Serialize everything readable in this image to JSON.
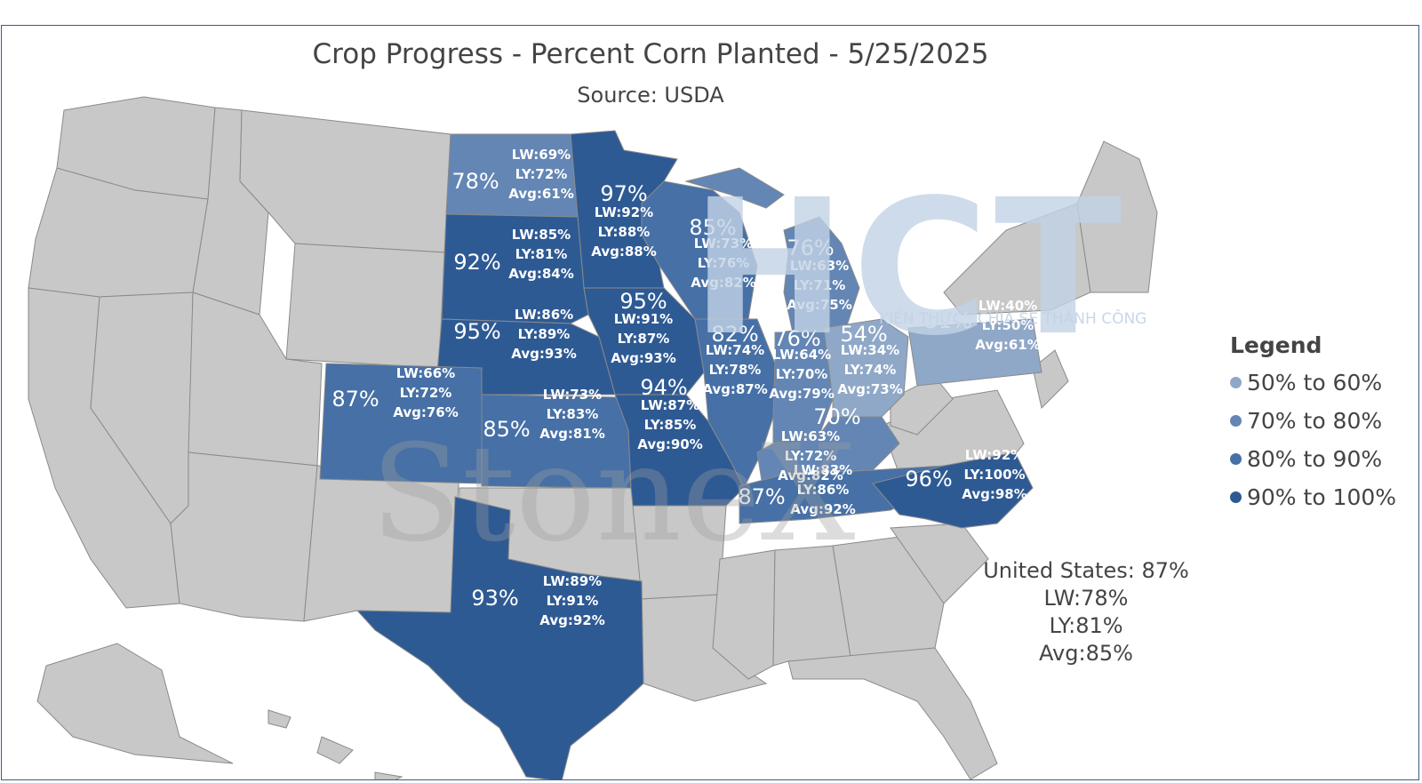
{
  "title": "Crop Progress - Percent Corn Planted - 5/25/2025",
  "subtitle": "Source: USDA",
  "legend": {
    "title": "Legend",
    "items": [
      {
        "label": "50% to 60%",
        "color": "#8fa8c8"
      },
      {
        "label": "70% to 80%",
        "color": "#6386b4"
      },
      {
        "label": "80% to 90%",
        "color": "#4670a6"
      },
      {
        "label": "90% to 100%",
        "color": "#2e5a94"
      }
    ]
  },
  "states": [
    {
      "id": "ND",
      "pct": "78%",
      "lw": "LW:69%",
      "ly": "LY:72%",
      "avg": "Avg:61%",
      "color": "#6386b4"
    },
    {
      "id": "MN",
      "pct": "97%",
      "lw": "LW:92%",
      "ly": "LY:88%",
      "avg": "Avg:88%",
      "color": "#2e5a94"
    },
    {
      "id": "WI",
      "pct": "85%",
      "lw": "LW:73%",
      "ly": "LY:76%",
      "avg": "Avg:82%",
      "color": "#4670a6"
    },
    {
      "id": "MI",
      "pct": "76%",
      "lw": "LW:63%",
      "ly": "LY:71%",
      "avg": "Avg:75%",
      "color": "#6386b4"
    },
    {
      "id": "SD",
      "pct": "92%",
      "lw": "LW:85%",
      "ly": "LY:81%",
      "avg": "Avg:84%",
      "color": "#2e5a94"
    },
    {
      "id": "IA",
      "pct": "95%",
      "lw": "LW:91%",
      "ly": "LY:87%",
      "avg": "Avg:93%",
      "color": "#2e5a94"
    },
    {
      "id": "NE",
      "pct": "95%",
      "lw": "LW:86%",
      "ly": "LY:89%",
      "avg": "Avg:93%",
      "color": "#2e5a94"
    },
    {
      "id": "CO",
      "pct": "87%",
      "lw": "LW:66%",
      "ly": "LY:72%",
      "avg": "Avg:76%",
      "color": "#4670a6"
    },
    {
      "id": "KS",
      "pct": "85%",
      "lw": "LW:73%",
      "ly": "LY:83%",
      "avg": "Avg:81%",
      "color": "#4670a6"
    },
    {
      "id": "MO",
      "pct": "94%",
      "lw": "LW:87%",
      "ly": "LY:85%",
      "avg": "Avg:90%",
      "color": "#2e5a94"
    },
    {
      "id": "IL",
      "pct": "82%",
      "lw": "LW:74%",
      "ly": "LY:78%",
      "avg": "Avg:87%",
      "color": "#4670a6"
    },
    {
      "id": "IN",
      "pct": "76%",
      "lw": "LW:64%",
      "ly": "LY:70%",
      "avg": "Avg:79%",
      "color": "#6386b4"
    },
    {
      "id": "OH",
      "pct": "54%",
      "lw": "LW:34%",
      "ly": "LY:74%",
      "avg": "Avg:73%",
      "color": "#8fa8c8"
    },
    {
      "id": "PA",
      "pct": "51%",
      "lw": "LW:40%",
      "ly": "LY:50%",
      "avg": "Avg:61%",
      "color": "#8fa8c8"
    },
    {
      "id": "KY",
      "pct": "70%",
      "lw": "LW:63%",
      "ly": "LY:72%",
      "avg": "Avg:82%",
      "color": "#6386b4"
    },
    {
      "id": "TN",
      "pct": "87%",
      "lw": "LW:83%",
      "ly": "LY:86%",
      "avg": "Avg:92%",
      "color": "#4670a6"
    },
    {
      "id": "NC",
      "pct": "96%",
      "lw": "LW:92%",
      "ly": "LY:100%",
      "avg": "Avg:98%",
      "color": "#2e5a94"
    },
    {
      "id": "TX",
      "pct": "93%",
      "lw": "LW:89%",
      "ly": "LY:91%",
      "avg": "Avg:92%",
      "color": "#2e5a94"
    }
  ],
  "us": {
    "label": "United States:",
    "pct": "87%",
    "lw": "LW:78%",
    "ly": "LY:81%",
    "avg": "Avg:85%"
  },
  "watermarks": {
    "logo": "HCT",
    "tagline": "KIẾN THỨC · CHIA SẺ THÀNH CÔNG",
    "brand": "StoneX"
  },
  "colors": {
    "gray_state": "#c8c8c8",
    "border": "#8a8a8a",
    "text_on_state": "#ffffff"
  }
}
